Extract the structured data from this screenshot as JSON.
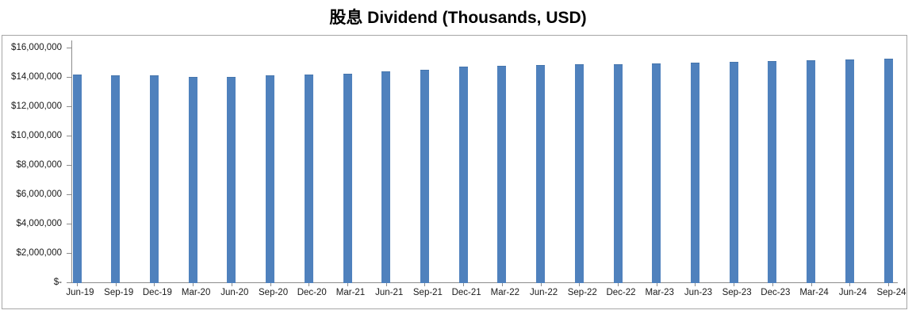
{
  "title": "股息 Dividend (Thousands, USD)",
  "chart_data": {
    "type": "bar",
    "title": "股息 Dividend (Thousands, USD)",
    "categories": [
      "Jun-19",
      "Sep-19",
      "Dec-19",
      "Mar-20",
      "Jun-20",
      "Sep-20",
      "Dec-20",
      "Mar-21",
      "Jun-21",
      "Sep-21",
      "Dec-21",
      "Mar-22",
      "Jun-22",
      "Sep-22",
      "Dec-22",
      "Mar-23",
      "Jun-23",
      "Sep-23",
      "Dec-23",
      "Mar-24",
      "Jun-24",
      "Sep-24"
    ],
    "values": [
      14150000,
      14100000,
      14100000,
      14000000,
      14000000,
      14100000,
      14150000,
      14200000,
      14400000,
      14500000,
      14700000,
      14750000,
      14800000,
      14850000,
      14850000,
      14900000,
      14950000,
      15050000,
      15100000,
      15150000,
      15200000,
      15250000
    ],
    "xlabel": "",
    "ylabel": "",
    "ylim": [
      0,
      16000000
    ],
    "y_tick_step": 2000000,
    "y_tick_labels": [
      "$-",
      "$2,000,000",
      "$4,000,000",
      "$6,000,000",
      "$8,000,000",
      "$10,000,000",
      "$12,000,000",
      "$14,000,000",
      "$16,000,000"
    ],
    "grid": "off",
    "legend": "none",
    "bar_color": "#4f81bd",
    "axis_color": "#8c8c8c",
    "frame_border_color": "#a6a6a6",
    "label_color": "#1a1a1a"
  }
}
